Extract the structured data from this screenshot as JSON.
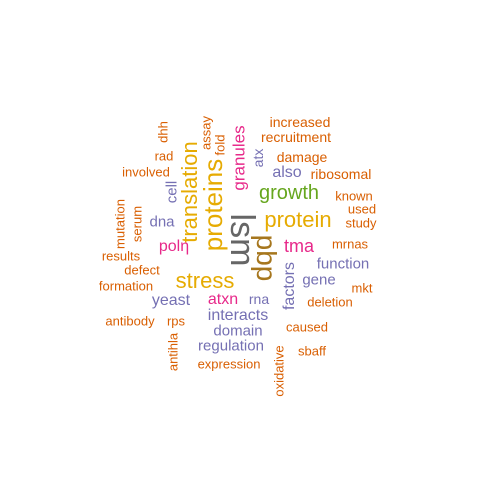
{
  "colors": {
    "orange": "#d95f02",
    "purple": "#7570b3",
    "magenta": "#e7298a",
    "green": "#66a61e",
    "gold": "#e6ab02",
    "brown": "#a6761d",
    "gray": "#666666"
  },
  "words": [
    {
      "text": "lsm",
      "color": "gray"
    },
    {
      "text": "pbp",
      "color": "brown"
    },
    {
      "text": "stress",
      "color": "gold"
    },
    {
      "text": "proteins",
      "color": "gold"
    },
    {
      "text": "translation",
      "color": "gold"
    },
    {
      "text": "protein",
      "color": "gold"
    },
    {
      "text": "growth",
      "color": "green"
    },
    {
      "text": "granules",
      "color": "magenta"
    },
    {
      "text": "tma",
      "color": "magenta"
    },
    {
      "text": "atxn",
      "color": "magenta"
    },
    {
      "text": "polη",
      "color": "magenta"
    },
    {
      "text": "factors",
      "color": "purple"
    },
    {
      "text": "also",
      "color": "purple"
    },
    {
      "text": "yeast",
      "color": "purple"
    },
    {
      "text": "interacts",
      "color": "purple"
    },
    {
      "text": "domain",
      "color": "purple"
    },
    {
      "text": "regulation",
      "color": "purple"
    },
    {
      "text": "function",
      "color": "purple"
    },
    {
      "text": "gene",
      "color": "purple"
    },
    {
      "text": "dna",
      "color": "purple"
    },
    {
      "text": "cell",
      "color": "purple"
    },
    {
      "text": "atx",
      "color": "purple"
    },
    {
      "text": "rna",
      "color": "purple"
    },
    {
      "text": "increased",
      "color": "orange"
    },
    {
      "text": "recruitment",
      "color": "orange"
    },
    {
      "text": "damage",
      "color": "orange"
    },
    {
      "text": "ribosomal",
      "color": "orange"
    },
    {
      "text": "known",
      "color": "orange"
    },
    {
      "text": "used",
      "color": "orange"
    },
    {
      "text": "study",
      "color": "orange"
    },
    {
      "text": "mrnas",
      "color": "orange"
    },
    {
      "text": "mkt",
      "color": "orange"
    },
    {
      "text": "deletion",
      "color": "orange"
    },
    {
      "text": "caused",
      "color": "orange"
    },
    {
      "text": "sbaff",
      "color": "orange"
    },
    {
      "text": "expression",
      "color": "orange"
    },
    {
      "text": "oxidative",
      "color": "orange"
    },
    {
      "text": "antihla",
      "color": "orange"
    },
    {
      "text": "rps",
      "color": "orange"
    },
    {
      "text": "antibody",
      "color": "orange"
    },
    {
      "text": "formation",
      "color": "orange"
    },
    {
      "text": "defect",
      "color": "orange"
    },
    {
      "text": "results",
      "color": "orange"
    },
    {
      "text": "serum",
      "color": "orange"
    },
    {
      "text": "mutation",
      "color": "orange"
    },
    {
      "text": "involved",
      "color": "orange"
    },
    {
      "text": "rad",
      "color": "orange"
    },
    {
      "text": "dhh",
      "color": "orange"
    },
    {
      "text": "assay",
      "color": "orange"
    },
    {
      "text": "fold",
      "color": "orange"
    }
  ]
}
